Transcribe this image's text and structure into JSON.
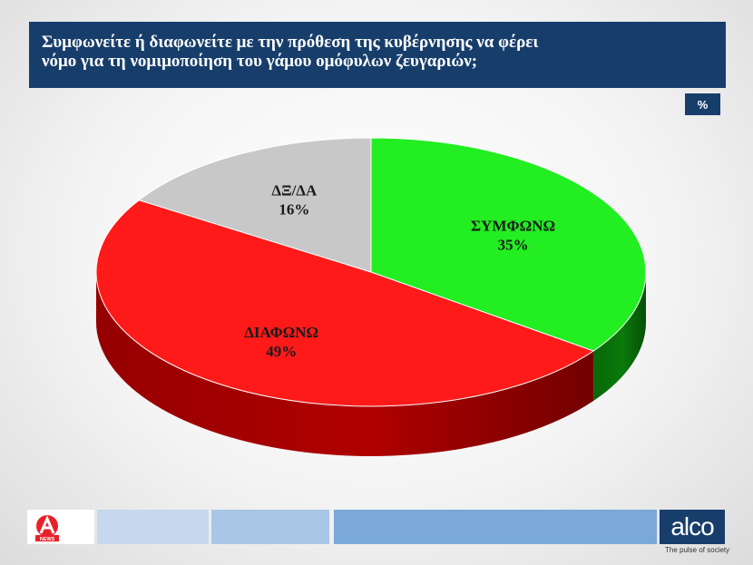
{
  "header": {
    "title_line1": "Συμφωνείτε ή διαφωνείτε με την πρόθεση της κυβέρνησης να φέρει",
    "title_line2": "νόμο για τη νομιμοποίηση του γάμου ομόφυλων ζευγαριών;",
    "unit_badge": "%"
  },
  "chart_data": {
    "type": "pie",
    "title": "Συμφωνείτε ή διαφωνείτε με την πρόθεση της κυβέρνησης να φέρει νόμο για τη νομιμοποίηση του γάμου ομόφυλων ζευγαριών;",
    "unit": "%",
    "three_d": true,
    "slices": [
      {
        "label": "ΣΥΜΦΩΝΩ",
        "value": 35,
        "value_label": "35%",
        "color": "#22ee22",
        "side_color": "#0a7a0a"
      },
      {
        "label": "ΔΙΑΦΩΝΩ",
        "value": 49,
        "value_label": "49%",
        "color": "#ff1a1a",
        "side_color": "#b00000"
      },
      {
        "label": "ΔΞ/ΔΑ",
        "value": 16,
        "value_label": "16%",
        "color": "#c8c8c8",
        "side_color": "#8a8a8a"
      }
    ]
  },
  "footer": {
    "left_logo_text": "NEWS",
    "brand": "alco",
    "tagline": "The pulse of society",
    "colors": {
      "navy": "#173e6b",
      "light_blue": "#c5d8ee",
      "mid_blue": "#a8c6e6",
      "blue": "#7aa8d8"
    }
  }
}
